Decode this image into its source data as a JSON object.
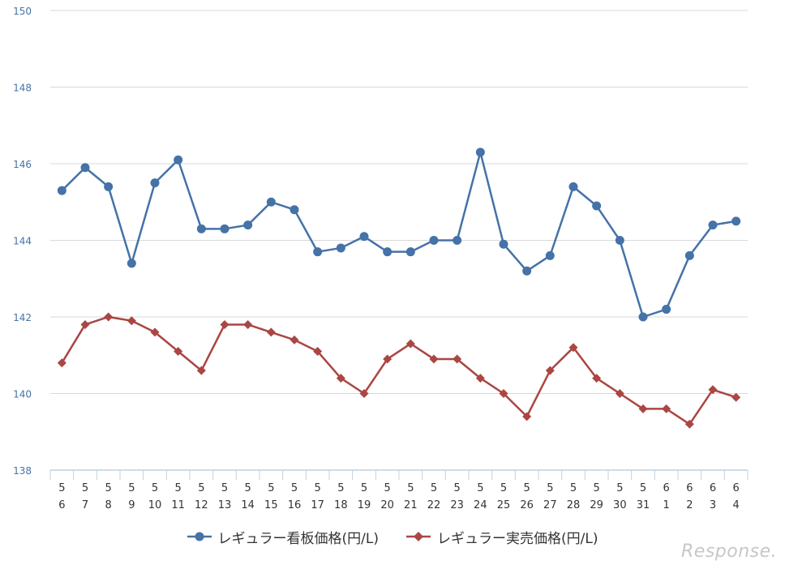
{
  "chart_data": {
    "type": "line",
    "ylim": [
      138,
      150
    ],
    "yticks": [
      138,
      140,
      142,
      144,
      146,
      148,
      150
    ],
    "grid": true,
    "legend_placement": "bottom",
    "categories": [
      [
        "5",
        "6"
      ],
      [
        "5",
        "7"
      ],
      [
        "5",
        "8"
      ],
      [
        "5",
        "9"
      ],
      [
        "5",
        "10"
      ],
      [
        "5",
        "11"
      ],
      [
        "5",
        "12"
      ],
      [
        "5",
        "13"
      ],
      [
        "5",
        "14"
      ],
      [
        "5",
        "15"
      ],
      [
        "5",
        "16"
      ],
      [
        "5",
        "17"
      ],
      [
        "5",
        "18"
      ],
      [
        "5",
        "19"
      ],
      [
        "5",
        "20"
      ],
      [
        "5",
        "21"
      ],
      [
        "5",
        "22"
      ],
      [
        "5",
        "23"
      ],
      [
        "5",
        "24"
      ],
      [
        "5",
        "25"
      ],
      [
        "5",
        "26"
      ],
      [
        "5",
        "27"
      ],
      [
        "5",
        "28"
      ],
      [
        "5",
        "29"
      ],
      [
        "5",
        "30"
      ],
      [
        "5",
        "31"
      ],
      [
        "6",
        "1"
      ],
      [
        "6",
        "2"
      ],
      [
        "6",
        "3"
      ],
      [
        "6",
        "4"
      ]
    ],
    "series": [
      {
        "name": "レギュラー看板価格(円/L)",
        "color": "#4572a7",
        "marker": "circle",
        "values": [
          145.3,
          145.9,
          145.4,
          143.4,
          145.5,
          146.1,
          144.3,
          144.3,
          144.4,
          145.0,
          144.8,
          143.7,
          143.8,
          144.1,
          143.7,
          143.7,
          144.0,
          144.0,
          146.3,
          143.9,
          143.2,
          143.6,
          145.4,
          144.9,
          144.0,
          142.0,
          142.2,
          143.6,
          144.4,
          144.5
        ]
      },
      {
        "name": "レギュラー実売価格(円/L)",
        "color": "#aa4643",
        "marker": "diamond",
        "values": [
          140.8,
          141.8,
          142.0,
          141.9,
          141.6,
          141.1,
          140.6,
          141.8,
          141.8,
          141.6,
          141.4,
          141.1,
          140.4,
          140.0,
          140.9,
          141.3,
          140.9,
          140.9,
          140.4,
          140.0,
          139.4,
          140.6,
          141.2,
          140.4,
          140.0,
          139.6,
          139.6,
          139.2,
          140.1,
          139.9
        ]
      }
    ]
  },
  "colors": {
    "grid": "#d9d9d9",
    "axis": "#c0d0e0",
    "ytick_text": "#4572a7",
    "xtick_text": "#333333"
  },
  "watermark": "Response."
}
